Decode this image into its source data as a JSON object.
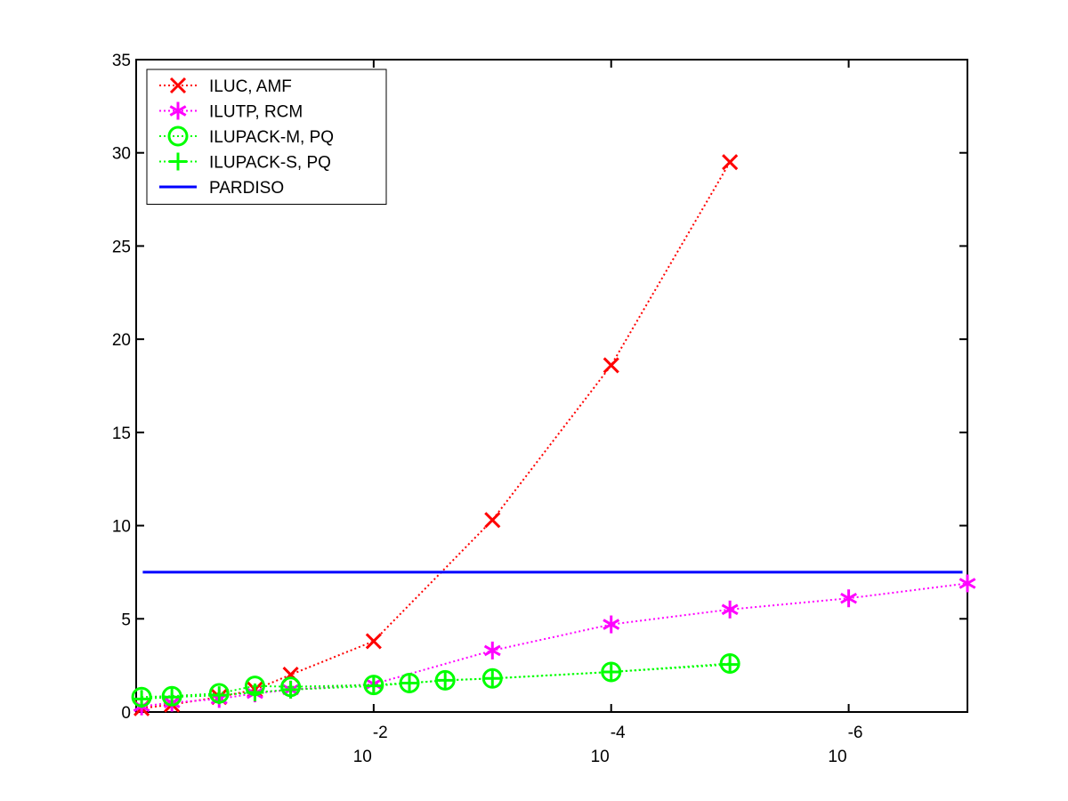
{
  "chart_data": {
    "type": "line",
    "x_scale": "log",
    "x_reversed": true,
    "xlim": [
      1.0,
      1e-07
    ],
    "ylim": [
      0,
      35
    ],
    "grid": false,
    "legend_position": "top-left",
    "y_ticks": [
      0,
      5,
      10,
      15,
      20,
      25,
      30,
      35
    ],
    "x_ticks": [
      {
        "x": 0.01,
        "base": "10",
        "exp": "-2"
      },
      {
        "x": 0.0001,
        "base": "10",
        "exp": "-4"
      },
      {
        "x": 1e-06,
        "base": "10",
        "exp": "-6"
      }
    ],
    "series": [
      {
        "name": "ILUC, AMF",
        "color": "#ff0000",
        "marker": "x",
        "line": "dotted",
        "x": [
          0.9,
          0.5,
          0.2,
          0.1,
          0.05,
          0.01,
          0.001,
          0.0001,
          1e-05
        ],
        "y": [
          0.2,
          0.4,
          0.8,
          1.2,
          2.0,
          3.8,
          10.3,
          18.6,
          29.5
        ]
      },
      {
        "name": "ILUTP, RCM",
        "color": "#ff00ff",
        "marker": "asterisk",
        "line": "dotted",
        "x": [
          0.9,
          0.5,
          0.2,
          0.1,
          0.05,
          0.01,
          0.001,
          0.0001,
          1e-05,
          1e-06,
          1e-07
        ],
        "y": [
          0.3,
          0.5,
          0.7,
          1.0,
          1.2,
          1.5,
          3.3,
          4.7,
          5.5,
          6.1,
          6.9
        ]
      },
      {
        "name": "ILUPACK-M, PQ",
        "color": "#00ff00",
        "marker": "circle",
        "line": "dotted",
        "x": [
          0.9,
          0.5,
          0.2,
          0.1,
          0.05,
          0.01,
          0.005,
          0.0025,
          0.001,
          0.0001,
          1e-05
        ],
        "y": [
          0.8,
          0.85,
          1.0,
          1.4,
          1.35,
          1.45,
          1.55,
          1.7,
          1.8,
          2.15,
          2.6
        ]
      },
      {
        "name": "ILUPACK-S, PQ",
        "color": "#00ff00",
        "marker": "plus",
        "line": "dotted",
        "x": [
          0.9,
          0.5,
          0.2,
          0.1,
          0.05,
          0.01,
          0.005,
          0.0025,
          0.001,
          0.0001,
          1e-05
        ],
        "y": [
          0.7,
          0.8,
          0.9,
          1.05,
          1.2,
          1.4,
          1.55,
          1.7,
          1.8,
          2.15,
          2.55
        ]
      },
      {
        "name": "PARDISO",
        "color": "#0000ff",
        "marker": "none",
        "line": "solid",
        "x": [
          0.88,
          1.1e-07
        ],
        "y": [
          7.5,
          7.5
        ]
      }
    ]
  }
}
